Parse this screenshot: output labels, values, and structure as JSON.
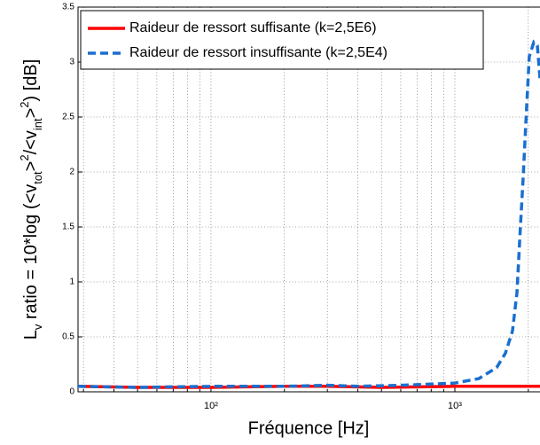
{
  "chart_data": {
    "type": "line",
    "ylabel_parts": [
      {
        "text": "L"
      },
      {
        "text": "v",
        "shift": "sub"
      },
      {
        "text": " ratio = 10*log (<v"
      },
      {
        "text": "tot",
        "shift": "sub"
      },
      {
        "text": ">"
      },
      {
        "text": "2",
        "shift": "super"
      },
      {
        "text": "/<v"
      },
      {
        "text": "int",
        "shift": "sub"
      },
      {
        "text": ">"
      },
      {
        "text": "2",
        "shift": "super"
      },
      {
        "text": ") [dB]"
      }
    ],
    "xlabel": "Fréquence [Hz]",
    "xscale": "log",
    "xlim": [
      28.5,
      2234
    ],
    "ylim": [
      0,
      3.5
    ],
    "xticks": [
      {
        "value": 100,
        "label": "10²"
      },
      {
        "value": 1000,
        "label": "10³"
      }
    ],
    "xminor_ticks": [
      30,
      40,
      50,
      60,
      70,
      80,
      90,
      200,
      300,
      400,
      500,
      600,
      700,
      800,
      900,
      2000
    ],
    "yticks": [
      0,
      0.5,
      1,
      1.5,
      2,
      2.5,
      3,
      3.5
    ],
    "grid": true,
    "legend": "upper left",
    "series": [
      {
        "name": "Raideur de ressort suffisante (k=2,5E6)",
        "color": "#ff0000",
        "dash": "solid",
        "x": [
          28.5,
          50,
          100,
          200,
          300,
          500,
          1000,
          2234
        ],
        "values": [
          0.05,
          0.04,
          0.04,
          0.05,
          0.05,
          0.04,
          0.05,
          0.05
        ]
      },
      {
        "name": "Raideur de ressort insuffisante (k=2,5E4)",
        "color": "#1a6fcf",
        "dash": "dashed",
        "x": [
          28.5,
          50,
          100,
          200,
          300,
          400,
          600,
          800,
          1000,
          1254,
          1483,
          1611,
          1722,
          1797,
          1857,
          1905,
          1970,
          2018,
          2107,
          2178,
          2234
        ],
        "values": [
          0.05,
          0.04,
          0.05,
          0.05,
          0.06,
          0.05,
          0.06,
          0.07,
          0.08,
          0.12,
          0.22,
          0.35,
          0.55,
          0.9,
          1.5,
          1.95,
          2.6,
          3.05,
          3.18,
          3.15,
          2.85
        ]
      }
    ]
  }
}
